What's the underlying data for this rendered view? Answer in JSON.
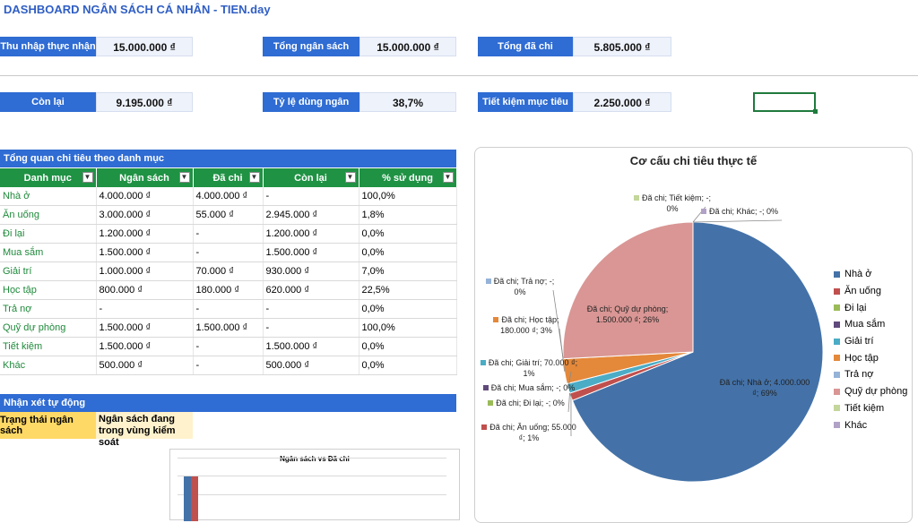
{
  "title": "DASHBOARD NGÂN SÁCH CÁ NHÂN - TIEN.day",
  "kpis": {
    "thu_nhap": {
      "label": "Thu nhập thực nhận",
      "value": "15.000.000 ₫"
    },
    "tong_ngan_sach": {
      "label": "Tổng ngân sách",
      "value": "15.000.000 ₫"
    },
    "tong_da_chi": {
      "label": "Tổng đã chi",
      "value": "5.805.000 ₫"
    },
    "con_lai": {
      "label": "Còn lại",
      "value": "9.195.000 ₫"
    },
    "ty_le": {
      "label": "Tỷ lệ dùng ngân sách",
      "value": "38,7%"
    },
    "tiet_kiem": {
      "label": "Tiết kiệm mục tiêu",
      "value": "2.250.000 ₫"
    }
  },
  "overview": {
    "title": "Tổng quan chi tiêu theo danh mục",
    "headers": [
      "Danh mục",
      "Ngân sách",
      "Đã chi",
      "Còn lại",
      "% sử dụng"
    ],
    "rows": [
      [
        "Nhà ở",
        "4.000.000 ₫",
        "4.000.000 ₫",
        "-",
        "100,0%"
      ],
      [
        "Ăn uống",
        "3.000.000 ₫",
        "55.000 ₫",
        "2.945.000 ₫",
        "1,8%"
      ],
      [
        "Đi lại",
        "1.200.000 ₫",
        "-",
        "1.200.000 ₫",
        "0,0%"
      ],
      [
        "Mua sắm",
        "1.500.000 ₫",
        "-",
        "1.500.000 ₫",
        "0,0%"
      ],
      [
        "Giải trí",
        "1.000.000 ₫",
        "70.000 ₫",
        "930.000 ₫",
        "7,0%"
      ],
      [
        "Học tập",
        "800.000 ₫",
        "180.000 ₫",
        "620.000 ₫",
        "22,5%"
      ],
      [
        "Trả nợ",
        "-",
        "-",
        "-",
        "0,0%"
      ],
      [
        "Quỹ dự phòng",
        "1.500.000 ₫",
        "1.500.000 ₫",
        "-",
        "100,0%"
      ],
      [
        "Tiết kiệm",
        "1.500.000 ₫",
        "-",
        "1.500.000 ₫",
        "0,0%"
      ],
      [
        "Khác",
        "500.000 ₫",
        "-",
        "500.000 ₫",
        "0,0%"
      ]
    ]
  },
  "remarks": {
    "title": "Nhận xét tự động",
    "status_label": "Trạng thái ngân sách",
    "status_value": "Ngân sách đang trong vùng kiểm soát"
  },
  "bar_chart": {
    "title": "Ngân sách vs Đã chi"
  },
  "chart_data": {
    "type": "pie",
    "title": "Cơ cấu chi tiêu thực tế",
    "legend_position": "right",
    "slices": [
      {
        "name": "Nhà ở",
        "value": 4000000,
        "percent": 69,
        "color": "#4472a8",
        "label": "Đã chi; Nhà ở; 4.000.000 ₫; 69%"
      },
      {
        "name": "Ăn uống",
        "value": 55000,
        "percent": 1,
        "color": "#c0504d",
        "label": "Đã chi; Ăn uống; 55.000 ₫; 1%"
      },
      {
        "name": "Đi lại",
        "value": 0,
        "percent": 0,
        "color": "#9bbb59",
        "label": "Đã chi; Đi lại; -; 0%"
      },
      {
        "name": "Mua sắm",
        "value": 0,
        "percent": 0,
        "color": "#604a7b",
        "label": "Đã chi; Mua sắm; -; 0%"
      },
      {
        "name": "Giải trí",
        "value": 70000,
        "percent": 1,
        "color": "#4bacc6",
        "label": "Đã chi; Giải trí; 70.000 ₫; 1%"
      },
      {
        "name": "Học tập",
        "value": 180000,
        "percent": 3,
        "color": "#e4883a",
        "label": "Đã chi; Học tập; 180.000 ₫; 3%"
      },
      {
        "name": "Trả nợ",
        "value": 0,
        "percent": 0,
        "color": "#95b3d7",
        "label": "Đã chi; Trả nợ; -; 0%"
      },
      {
        "name": "Quỹ dự phòng",
        "value": 1500000,
        "percent": 26,
        "color": "#d99694",
        "label": "Đã chi; Quỹ dự phòng; 1.500.000 ₫; 26%"
      },
      {
        "name": "Tiết kiệm",
        "value": 0,
        "percent": 0,
        "color": "#c3d69b",
        "label": "Đã chi; Tiết kiệm; -; 0%"
      },
      {
        "name": "Khác",
        "value": 0,
        "percent": 0,
        "color": "#b2a1c7",
        "label": "Đã chi; Khác; -; 0%"
      }
    ]
  }
}
